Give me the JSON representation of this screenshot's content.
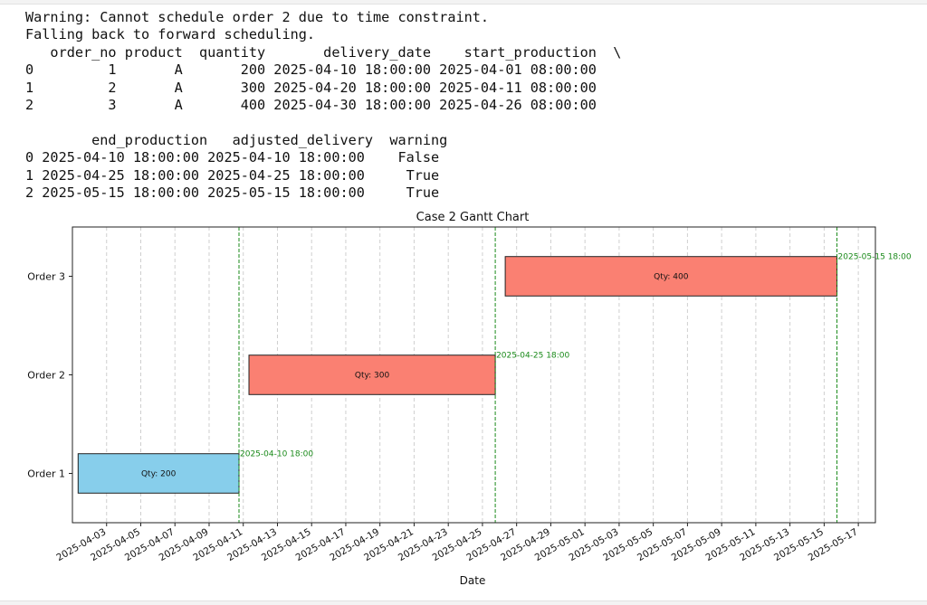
{
  "console": {
    "lines": [
      "Warning: Cannot schedule order 2 due to time constraint.",
      "Falling back to forward scheduling.",
      "   order_no product  quantity       delivery_date    start_production  \\",
      "0         1       A       200 2025-04-10 18:00:00 2025-04-01 08:00:00",
      "1         2       A       300 2025-04-20 18:00:00 2025-04-11 08:00:00",
      "2         3       A       400 2025-04-30 18:00:00 2025-04-26 08:00:00",
      "",
      "        end_production   adjusted_delivery  warning",
      "0 2025-04-10 18:00:00 2025-04-10 18:00:00    False",
      "1 2025-04-25 18:00:00 2025-04-25 18:00:00     True",
      "2 2025-05-15 18:00:00 2025-05-15 18:00:00     True"
    ]
  },
  "chart_data": {
    "type": "gantt",
    "title": "Case 2 Gantt Chart",
    "xlabel": "Date",
    "ylabel": "",
    "xlim": [
      "2025-04-01 00:00",
      "2025-05-18 00:00"
    ],
    "grid": "x-dashed",
    "categories": [
      "Order 1",
      "Order 2",
      "Order 3"
    ],
    "tasks": [
      {
        "label": "Order 1",
        "start": "2025-04-01 08:00",
        "end": "2025-04-10 18:00",
        "text": "Qty: 200",
        "color": "#87ceeb",
        "marker_label": "2025-04-10 18:00"
      },
      {
        "label": "Order 2",
        "start": "2025-04-11 08:00",
        "end": "2025-04-25 18:00",
        "text": "Qty: 300",
        "color": "#fa8072",
        "marker_label": "2025-04-25 18:00"
      },
      {
        "label": "Order 3",
        "start": "2025-04-26 08:00",
        "end": "2025-05-15 18:00",
        "text": "Qty: 400",
        "color": "#fa8072",
        "marker_label": "2025-05-15 18:00"
      }
    ],
    "xticks": [
      "2025-04-03",
      "2025-04-05",
      "2025-04-07",
      "2025-04-09",
      "2025-04-11",
      "2025-04-13",
      "2025-04-15",
      "2025-04-17",
      "2025-04-19",
      "2025-04-21",
      "2025-04-23",
      "2025-04-25",
      "2025-04-27",
      "2025-04-29",
      "2025-05-01",
      "2025-05-03",
      "2025-05-05",
      "2025-05-07",
      "2025-05-09",
      "2025-05-11",
      "2025-05-13",
      "2025-05-15",
      "2025-05-17"
    ],
    "marker_color": "#1a8a1a"
  }
}
